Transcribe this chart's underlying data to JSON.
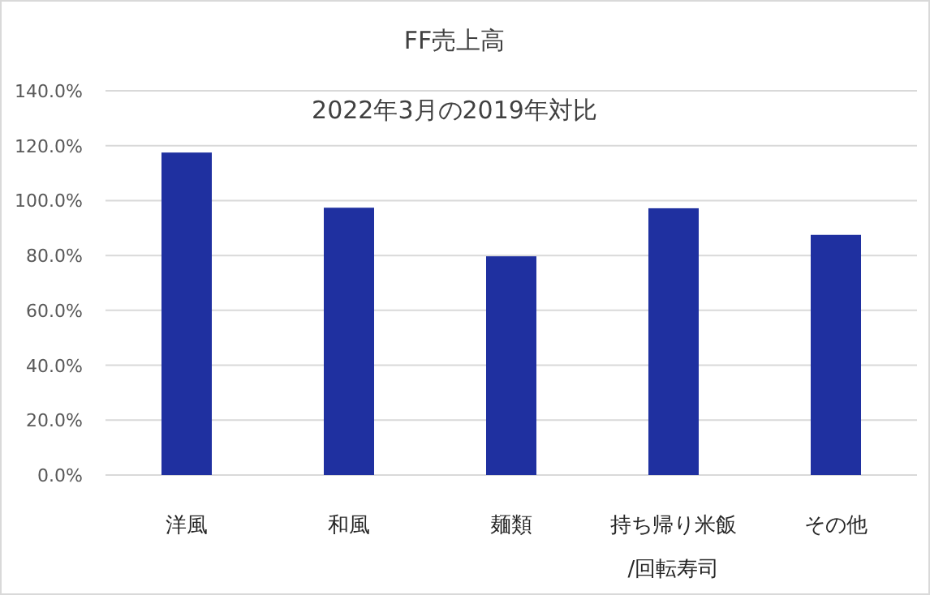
{
  "chart_data": {
    "type": "bar",
    "title": "FF売上高",
    "subtitle": "2022年3月の2019年対比",
    "categories": [
      "洋風",
      "和風",
      "麺類",
      "持ち帰り米飯\n/回転寿司",
      "その他"
    ],
    "values": [
      117.5,
      97.4,
      79.7,
      97.2,
      87.5
    ],
    "color": "#1f30a0",
    "ylim": [
      0,
      140
    ],
    "yticks": [
      {
        "value": 0,
        "label": "0.0%"
      },
      {
        "value": 20,
        "label": "20.0%"
      },
      {
        "value": 40,
        "label": "40.0%"
      },
      {
        "value": 60,
        "label": "60.0%"
      },
      {
        "value": 80,
        "label": "80.0%"
      },
      {
        "value": 100,
        "label": "100.0%"
      },
      {
        "value": 120,
        "label": "120.0%"
      },
      {
        "value": 140,
        "label": "140.0%"
      }
    ],
    "grid": "y"
  }
}
